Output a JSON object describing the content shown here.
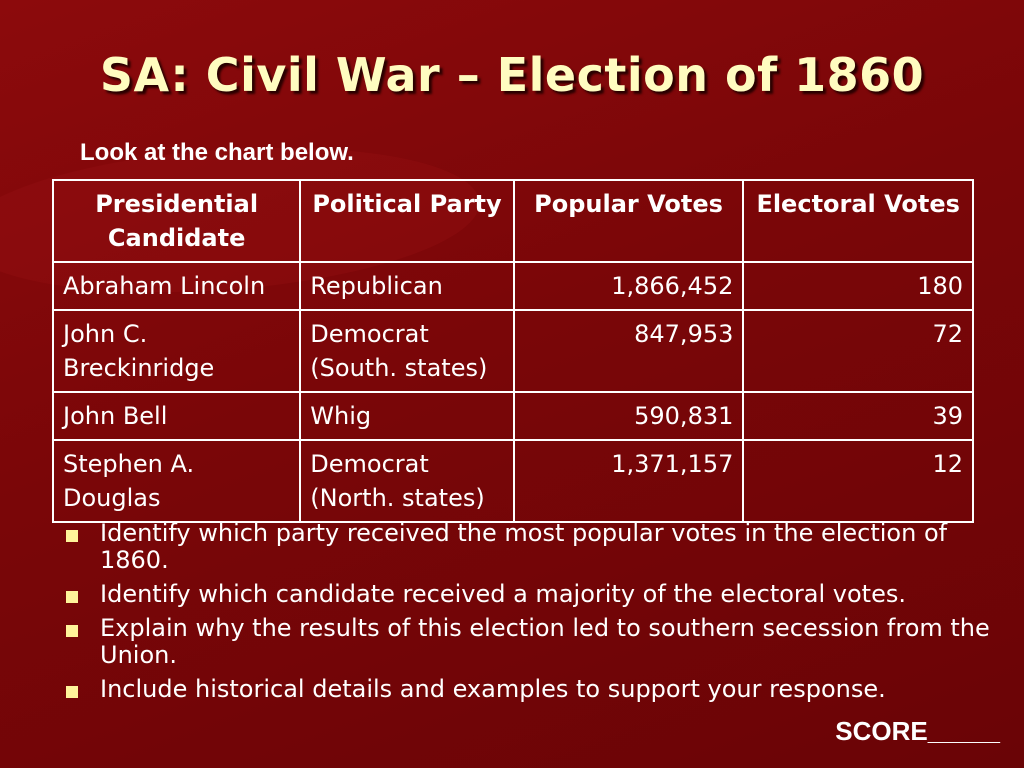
{
  "slide": {
    "title": "SA: Civil War – Election of 1860",
    "instruction": "Look at the chart below."
  },
  "table": {
    "headers": [
      "Presidential Candidate",
      "Political Party",
      "Popular Votes",
      "Electoral Votes"
    ],
    "rows": [
      {
        "candidate": "Abraham Lincoln",
        "party": "Republican",
        "popular_votes": "1,866,452",
        "electoral_votes": "180"
      },
      {
        "candidate": "John C. Breckinridge",
        "party": "Democrat (South. states)",
        "popular_votes": "847,953",
        "electoral_votes": "72"
      },
      {
        "candidate": "John Bell",
        "party": "Whig",
        "popular_votes": "590,831",
        "electoral_votes": "39"
      },
      {
        "candidate": "Stephen A. Douglas",
        "party": "Democrat (North. states)",
        "popular_votes": "1,371,157",
        "electoral_votes": "12"
      }
    ]
  },
  "questions": [
    "Identify which party received the most popular votes in the election of 1860.",
    "Identify which candidate received a majority of the electoral votes.",
    "Explain why the results of this election led to southern secession from the Union.",
    "Include historical details and examples to support your response."
  ],
  "score_label": "SCORE_____",
  "colors": {
    "background": "#7a0608",
    "title": "#fffcc0",
    "bullet": "#fff39a",
    "text": "#ffffff"
  }
}
